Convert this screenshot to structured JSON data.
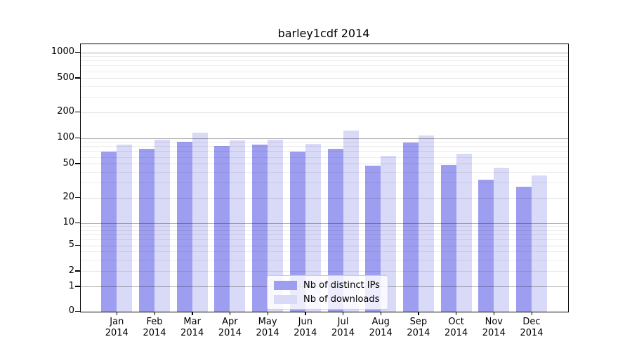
{
  "chart_data": {
    "type": "bar",
    "title": "barley1cdf 2014",
    "categories": [
      "Jan",
      "Feb",
      "Mar",
      "Apr",
      "May",
      "Jun",
      "Jul",
      "Aug",
      "Sep",
      "Oct",
      "Nov",
      "Dec"
    ],
    "category_year": "2014",
    "series": [
      {
        "name": "Nb of distinct IPs",
        "color": "#9e9ef0",
        "values": [
          70,
          76,
          91,
          82,
          84,
          70,
          76,
          48,
          90,
          49,
          33,
          27
        ]
      },
      {
        "name": "Nb of downloads",
        "color": "#d9d9f8",
        "values": [
          85,
          96,
          116,
          95,
          97,
          86,
          122,
          62,
          108,
          66,
          45,
          37
        ]
      }
    ],
    "y_ticks": [
      0,
      1,
      2,
      5,
      10,
      20,
      50,
      100,
      200,
      500,
      1000
    ],
    "y_scale": "log-like (0,1,2,5,10,20,50,100,200,500,1000)",
    "ylim": [
      0,
      1000
    ],
    "grid": true,
    "legend_position": "bottom-center",
    "colors": {
      "grid_major": "#adadad",
      "grid_minor": "#e9e9e9",
      "axis": "#000000",
      "background": "#ffffff"
    }
  }
}
